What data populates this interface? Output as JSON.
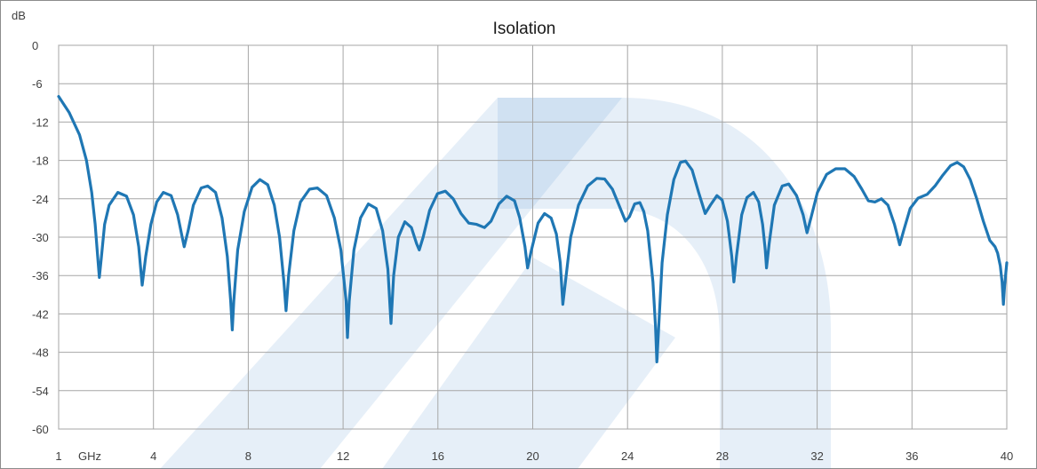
{
  "chart_data": {
    "type": "line",
    "title": "Isolation",
    "ylabel": "dB",
    "xunit": "GHz",
    "xlim": [
      1,
      40
    ],
    "ylim": [
      -60,
      0
    ],
    "xticks": [
      1,
      4,
      8,
      12,
      16,
      20,
      24,
      28,
      32,
      36,
      40
    ],
    "yticks": [
      0,
      -6,
      -12,
      -18,
      -24,
      -30,
      -36,
      -42,
      -48,
      -54,
      -60
    ],
    "grid": true,
    "legend": "none",
    "line_color": "#1f77b4",
    "watermark_color": "#3b86c8",
    "series": [
      {
        "points": [
          [
            1.0,
            -8.0
          ],
          [
            1.3,
            -10.5
          ],
          [
            1.6,
            -14.0
          ],
          [
            1.8,
            -18.0
          ],
          [
            1.95,
            -23.0
          ],
          [
            2.05,
            -28.0
          ],
          [
            2.12,
            -33.0
          ],
          [
            2.17,
            -36.3
          ],
          [
            2.23,
            -33.0
          ],
          [
            2.32,
            -28.0
          ],
          [
            2.45,
            -25.0
          ],
          [
            2.7,
            -23.0
          ],
          [
            2.95,
            -23.6
          ],
          [
            3.15,
            -26.5
          ],
          [
            3.3,
            -31.5
          ],
          [
            3.4,
            -37.5
          ],
          [
            3.5,
            -33.0
          ],
          [
            3.65,
            -28.0
          ],
          [
            3.85,
            -24.5
          ],
          [
            4.1,
            -23.0
          ],
          [
            4.4,
            -23.5
          ],
          [
            4.65,
            -26.5
          ],
          [
            4.8,
            -29.5
          ],
          [
            4.9,
            -31.5
          ],
          [
            5.05,
            -29.0
          ],
          [
            5.25,
            -25.0
          ],
          [
            5.55,
            -22.3
          ],
          [
            5.8,
            -22.0
          ],
          [
            6.1,
            -23.0
          ],
          [
            6.35,
            -27.0
          ],
          [
            6.55,
            -33.0
          ],
          [
            6.68,
            -40.0
          ],
          [
            6.74,
            -44.5
          ],
          [
            6.8,
            -40.0
          ],
          [
            6.95,
            -32.0
          ],
          [
            7.2,
            -26.0
          ],
          [
            7.5,
            -22.2
          ],
          [
            7.8,
            -21.0
          ],
          [
            8.1,
            -21.8
          ],
          [
            8.35,
            -25.0
          ],
          [
            8.55,
            -30.0
          ],
          [
            8.72,
            -37.0
          ],
          [
            8.8,
            -41.5
          ],
          [
            8.9,
            -36.0
          ],
          [
            9.1,
            -29.0
          ],
          [
            9.35,
            -24.5
          ],
          [
            9.7,
            -22.5
          ],
          [
            10.0,
            -22.3
          ],
          [
            10.35,
            -23.5
          ],
          [
            10.65,
            -27.0
          ],
          [
            10.9,
            -32.0
          ],
          [
            11.1,
            -40.0
          ],
          [
            11.15,
            -45.7
          ],
          [
            11.22,
            -40.0
          ],
          [
            11.4,
            -32.0
          ],
          [
            11.65,
            -27.0
          ],
          [
            11.95,
            -24.8
          ],
          [
            12.25,
            -25.5
          ],
          [
            12.5,
            -29.0
          ],
          [
            12.7,
            -35.0
          ],
          [
            12.82,
            -43.5
          ],
          [
            12.92,
            -36.0
          ],
          [
            13.1,
            -30.0
          ],
          [
            13.35,
            -27.6
          ],
          [
            13.6,
            -28.5
          ],
          [
            13.8,
            -31.0
          ],
          [
            13.9,
            -32.0
          ],
          [
            14.05,
            -30.0
          ],
          [
            14.3,
            -25.8
          ],
          [
            14.6,
            -23.2
          ],
          [
            14.9,
            -22.8
          ],
          [
            15.2,
            -24.0
          ],
          [
            15.5,
            -26.3
          ],
          [
            15.8,
            -27.8
          ],
          [
            16.1,
            -28.0
          ],
          [
            16.4,
            -28.5
          ],
          [
            16.65,
            -27.5
          ],
          [
            16.95,
            -24.8
          ],
          [
            17.25,
            -23.6
          ],
          [
            17.55,
            -24.3
          ],
          [
            17.75,
            -27.0
          ],
          [
            17.95,
            -31.5
          ],
          [
            18.05,
            -34.8
          ],
          [
            18.2,
            -32.0
          ],
          [
            18.45,
            -27.8
          ],
          [
            18.7,
            -26.3
          ],
          [
            18.95,
            -27.0
          ],
          [
            19.15,
            -29.5
          ],
          [
            19.3,
            -34.0
          ],
          [
            19.4,
            -40.5
          ],
          [
            19.5,
            -37.0
          ],
          [
            19.7,
            -30.0
          ],
          [
            20.0,
            -25.0
          ],
          [
            20.35,
            -22.0
          ],
          [
            20.7,
            -20.8
          ],
          [
            21.0,
            -20.9
          ],
          [
            21.3,
            -22.5
          ],
          [
            21.55,
            -25.0
          ],
          [
            21.8,
            -27.5
          ],
          [
            21.95,
            -26.8
          ],
          [
            22.15,
            -24.8
          ],
          [
            22.35,
            -24.6
          ],
          [
            22.5,
            -26.0
          ],
          [
            22.65,
            -29.0
          ],
          [
            22.85,
            -37.0
          ],
          [
            22.95,
            -44.0
          ],
          [
            23.0,
            -49.5
          ],
          [
            23.07,
            -44.0
          ],
          [
            23.2,
            -34.0
          ],
          [
            23.4,
            -26.5
          ],
          [
            23.65,
            -21.0
          ],
          [
            23.9,
            -18.3
          ],
          [
            24.1,
            -18.1
          ],
          [
            24.35,
            -19.5
          ],
          [
            24.6,
            -23.0
          ],
          [
            24.85,
            -26.3
          ],
          [
            25.05,
            -25.0
          ],
          [
            25.3,
            -23.5
          ],
          [
            25.5,
            -24.2
          ],
          [
            25.7,
            -27.5
          ],
          [
            25.87,
            -33.0
          ],
          [
            25.95,
            -37.0
          ],
          [
            26.05,
            -33.0
          ],
          [
            26.25,
            -26.5
          ],
          [
            26.45,
            -23.8
          ],
          [
            26.7,
            -23.0
          ],
          [
            26.9,
            -24.5
          ],
          [
            27.05,
            -28.0
          ],
          [
            27.15,
            -32.0
          ],
          [
            27.2,
            -34.8
          ],
          [
            27.3,
            -31.0
          ],
          [
            27.5,
            -25.0
          ],
          [
            27.8,
            -22.0
          ],
          [
            28.05,
            -21.7
          ],
          [
            28.35,
            -23.5
          ],
          [
            28.6,
            -26.5
          ],
          [
            28.75,
            -29.3
          ],
          [
            28.9,
            -27.0
          ],
          [
            29.15,
            -23.0
          ],
          [
            29.5,
            -20.2
          ],
          [
            29.85,
            -19.3
          ],
          [
            30.2,
            -19.3
          ],
          [
            30.55,
            -20.5
          ],
          [
            30.85,
            -22.5
          ],
          [
            31.1,
            -24.3
          ],
          [
            31.35,
            -24.5
          ],
          [
            31.6,
            -24.0
          ],
          [
            31.85,
            -25.0
          ],
          [
            32.1,
            -28.0
          ],
          [
            32.3,
            -31.2
          ],
          [
            32.45,
            -29.0
          ],
          [
            32.7,
            -25.5
          ],
          [
            33.0,
            -23.9
          ],
          [
            33.35,
            -23.3
          ],
          [
            33.65,
            -22.0
          ],
          [
            33.95,
            -20.3
          ],
          [
            34.25,
            -18.8
          ],
          [
            34.5,
            -18.3
          ],
          [
            34.75,
            -19.0
          ],
          [
            35.0,
            -21.0
          ],
          [
            35.25,
            -24.0
          ],
          [
            35.5,
            -27.5
          ],
          [
            35.75,
            -30.5
          ],
          [
            35.95,
            -31.5
          ],
          [
            36.05,
            -32.5
          ],
          [
            36.15,
            -34.5
          ],
          [
            36.22,
            -37.0
          ],
          [
            36.27,
            -40.5
          ],
          [
            36.32,
            -37.5
          ],
          [
            36.4,
            -34.0
          ]
        ],
        "x_scale": "mapped"
      }
    ]
  }
}
